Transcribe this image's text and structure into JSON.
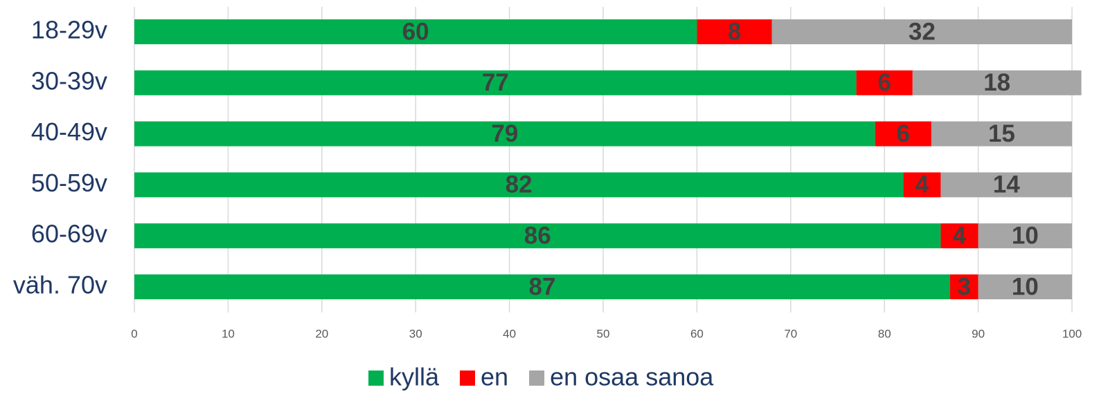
{
  "chart_data": {
    "type": "stacked_bar_horizontal",
    "categories": [
      "18-29v",
      "30-39v",
      "40-49v",
      "50-59v",
      "60-69v",
      "väh. 70v"
    ],
    "series": [
      {
        "name": "kyllä",
        "color": "#00b050",
        "values": [
          60,
          77,
          79,
          82,
          86,
          87
        ]
      },
      {
        "name": "en",
        "color": "#ff0000",
        "values": [
          8,
          6,
          6,
          4,
          4,
          3
        ]
      },
      {
        "name": "en osaa sanoa",
        "color": "#a6a6a6",
        "values": [
          32,
          18,
          15,
          14,
          10,
          10
        ]
      }
    ],
    "xlim": [
      0,
      100
    ],
    "xticks": [
      0,
      10,
      20,
      30,
      40,
      50,
      60,
      70,
      80,
      90,
      100
    ],
    "grid": true,
    "legend": "bottom"
  }
}
